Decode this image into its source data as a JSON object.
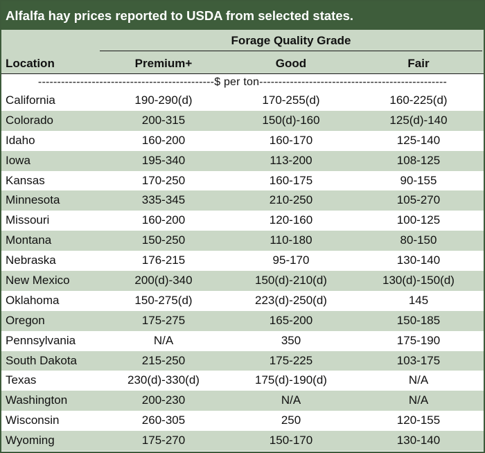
{
  "title": "Alfalfa hay prices reported to USDA from selected states.",
  "group_header": "Forage Quality Grade",
  "columns": {
    "location": "Location",
    "premium": "Premium+",
    "good": "Good",
    "fair": "Fair"
  },
  "units": "----------------------------------------------$ per ton-------------------------------------------------",
  "colors": {
    "title_bg": "#3e5d3b",
    "shade": "#cad8c6",
    "title_text": "#ffffff"
  },
  "rows": [
    {
      "location": "California",
      "premium": "190-290(d)",
      "good": "170-255(d)",
      "fair": "160-225(d)"
    },
    {
      "location": "Colorado",
      "premium": "200-315",
      "good": "150(d)-160",
      "fair": "125(d)-140"
    },
    {
      "location": "Idaho",
      "premium": "160-200",
      "good": "160-170",
      "fair": "125-140"
    },
    {
      "location": "Iowa",
      "premium": "195-340",
      "good": "113-200",
      "fair": "108-125"
    },
    {
      "location": "Kansas",
      "premium": "170-250",
      "good": "160-175",
      "fair": "90-155"
    },
    {
      "location": "Minnesota",
      "premium": "335-345",
      "good": "210-250",
      "fair": "105-270"
    },
    {
      "location": "Missouri",
      "premium": "160-200",
      "good": "120-160",
      "fair": "100-125"
    },
    {
      "location": "Montana",
      "premium": "150-250",
      "good": "110-180",
      "fair": "80-150"
    },
    {
      "location": "Nebraska",
      "premium": "176-215",
      "good": "95-170",
      "fair": "130-140"
    },
    {
      "location": "New Mexico",
      "premium": "200(d)-340",
      "good": "150(d)-210(d)",
      "fair": "130(d)-150(d)"
    },
    {
      "location": "Oklahoma",
      "premium": "150-275(d)",
      "good": "223(d)-250(d)",
      "fair": "145"
    },
    {
      "location": "Oregon",
      "premium": "175-275",
      "good": "165-200",
      "fair": "150-185"
    },
    {
      "location": "Pennsylvania",
      "premium": "N/A",
      "good": "350",
      "fair": "175-190"
    },
    {
      "location": "South Dakota",
      "premium": "215-250",
      "good": "175-225",
      "fair": "103-175"
    },
    {
      "location": "Texas",
      "premium": "230(d)-330(d)",
      "good": "175(d)-190(d)",
      "fair": "N/A"
    },
    {
      "location": "Washington",
      "premium": "200-230",
      "good": "N/A",
      "fair": "N/A"
    },
    {
      "location": "Wisconsin",
      "premium": "260-305",
      "good": "250",
      "fair": "120-155"
    },
    {
      "location": "Wyoming",
      "premium": "175-270",
      "good": "150-170",
      "fair": "130-140"
    }
  ]
}
